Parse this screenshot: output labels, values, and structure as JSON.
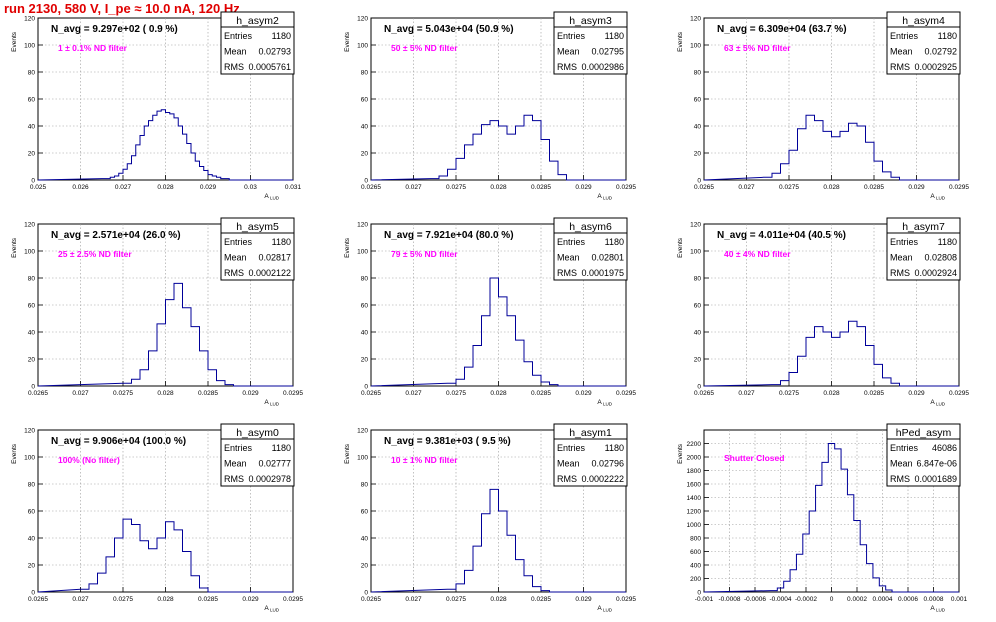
{
  "header": {
    "title": "run 2130,   580 V, I_pe ≈ 10.0 nA, 120 Hz"
  },
  "chart_data": [
    {
      "type": "bar",
      "name": "h_asym2",
      "title": "N_avg = 9.297e+02 ( 0.9 %)",
      "annotation": "1 ±  0.1% ND filter",
      "xlabel": "A_LUD",
      "ylabel": "Events",
      "xlim": [
        0.025,
        0.031
      ],
      "ylim": [
        0,
        120
      ],
      "xticks": [
        0.025,
        0.026,
        0.027,
        0.028,
        0.029,
        0.03,
        0.031
      ],
      "xtick_labels": [
        "0.025",
        "0.026",
        "0.027",
        "0.028",
        "0.029",
        "0.03",
        "0.031"
      ],
      "yticks": [
        0,
        20,
        40,
        60,
        80,
        100,
        120
      ],
      "stats": {
        "Entries": "1180",
        "Mean": "0.02793",
        "RMS": "0.0005761"
      },
      "x": [
        0.02655,
        0.02665,
        0.02675,
        0.02685,
        0.02695,
        0.02705,
        0.02715,
        0.02725,
        0.02735,
        0.02745,
        0.02755,
        0.02765,
        0.02775,
        0.02785,
        0.02795,
        0.02805,
        0.02815,
        0.02825,
        0.02835,
        0.02845,
        0.02855,
        0.02865,
        0.02875,
        0.02885,
        0.02895,
        0.02905,
        0.02915,
        0.02925,
        0.02935,
        0.02945
      ],
      "values": [
        1,
        1,
        2,
        3,
        5,
        8,
        12,
        18,
        26,
        33,
        40,
        44,
        48,
        51,
        52,
        50,
        49,
        46,
        40,
        34,
        27,
        20,
        14,
        10,
        7,
        4,
        3,
        2,
        1,
        1
      ]
    },
    {
      "type": "bar",
      "name": "h_asym3",
      "title": "N_avg = 5.043e+04 (50.9 %)",
      "annotation": "50 ±  5% ND filter",
      "xlabel": "A_LUD",
      "ylabel": "Events",
      "xlim": [
        0.0265,
        0.0295
      ],
      "ylim": [
        0,
        120
      ],
      "xticks": [
        0.0265,
        0.027,
        0.0275,
        0.028,
        0.0285,
        0.029,
        0.0295
      ],
      "xtick_labels": [
        "0.0265",
        "0.027",
        "0.0275",
        "0.028",
        "0.0285",
        "0.029",
        "0.0295"
      ],
      "yticks": [
        0,
        20,
        40,
        60,
        80,
        100,
        120
      ],
      "stats": {
        "Entries": "1180",
        "Mean": "0.02795",
        "RMS": "0.0002986"
      },
      "x": [
        0.02725,
        0.02735,
        0.02745,
        0.02755,
        0.02765,
        0.02775,
        0.02785,
        0.02795,
        0.02805,
        0.02815,
        0.02825,
        0.02835,
        0.02845,
        0.02855,
        0.02865,
        0.02875
      ],
      "values": [
        1,
        3,
        8,
        16,
        26,
        34,
        41,
        44,
        40,
        34,
        40,
        48,
        44,
        30,
        14,
        4
      ]
    },
    {
      "type": "bar",
      "name": "h_asym4",
      "title": "N_avg = 6.309e+04 (63.7 %)",
      "annotation": "63 ±  5% ND filter",
      "xlabel": "A_LUD",
      "ylabel": "Events",
      "xlim": [
        0.0265,
        0.0295
      ],
      "ylim": [
        0,
        120
      ],
      "xticks": [
        0.0265,
        0.027,
        0.0275,
        0.028,
        0.0285,
        0.029,
        0.0295
      ],
      "xtick_labels": [
        "0.0265",
        "0.027",
        "0.0275",
        "0.028",
        "0.0285",
        "0.029",
        "0.0295"
      ],
      "yticks": [
        0,
        20,
        40,
        60,
        80,
        100,
        120
      ],
      "stats": {
        "Entries": "1180",
        "Mean": "0.02792",
        "RMS": "0.0002925"
      },
      "x": [
        0.02725,
        0.02735,
        0.02745,
        0.02755,
        0.02765,
        0.02775,
        0.02785,
        0.02795,
        0.02805,
        0.02815,
        0.02825,
        0.02835,
        0.02845,
        0.02855,
        0.02865,
        0.02875
      ],
      "values": [
        2,
        5,
        12,
        22,
        38,
        48,
        44,
        36,
        32,
        36,
        42,
        40,
        28,
        14,
        6,
        2
      ]
    },
    {
      "type": "bar",
      "name": "h_asym5",
      "title": "N_avg = 2.571e+04 (26.0 %)",
      "annotation": "25 ±  2.5% ND filter",
      "xlabel": "A_LUD",
      "ylabel": "Events",
      "xlim": [
        0.0265,
        0.0295
      ],
      "ylim": [
        0,
        120
      ],
      "xticks": [
        0.0265,
        0.027,
        0.0275,
        0.028,
        0.0285,
        0.029,
        0.0295
      ],
      "xtick_labels": [
        "0.0265",
        "0.027",
        "0.0275",
        "0.028",
        "0.0285",
        "0.029",
        "0.0295"
      ],
      "yticks": [
        0,
        20,
        40,
        60,
        80,
        100,
        120
      ],
      "stats": {
        "Entries": "1180",
        "Mean": "0.02817",
        "RMS": "0.0002122"
      },
      "x": [
        0.02755,
        0.02765,
        0.02775,
        0.02785,
        0.02795,
        0.02805,
        0.02815,
        0.02825,
        0.02835,
        0.02845,
        0.02855,
        0.02865,
        0.02875
      ],
      "values": [
        2,
        5,
        12,
        26,
        46,
        64,
        76,
        58,
        44,
        26,
        12,
        4,
        1
      ]
    },
    {
      "type": "bar",
      "name": "h_asym6",
      "title": "N_avg = 7.921e+04 (80.0 %)",
      "annotation": "79 ±  5% ND filter",
      "xlabel": "A_LUD",
      "ylabel": "Events",
      "xlim": [
        0.0265,
        0.0295
      ],
      "ylim": [
        0,
        120
      ],
      "xticks": [
        0.0265,
        0.027,
        0.0275,
        0.028,
        0.0285,
        0.029,
        0.0295
      ],
      "xtick_labels": [
        "0.0265",
        "0.027",
        "0.0275",
        "0.028",
        "0.0285",
        "0.029",
        "0.0295"
      ],
      "yticks": [
        0,
        20,
        40,
        60,
        80,
        100,
        120
      ],
      "stats": {
        "Entries": "1180",
        "Mean": "0.02801",
        "RMS": "0.0001975"
      },
      "x": [
        0.02745,
        0.02755,
        0.02765,
        0.02775,
        0.02785,
        0.02795,
        0.02805,
        0.02815,
        0.02825,
        0.02835,
        0.02845,
        0.02855,
        0.02865
      ],
      "values": [
        2,
        5,
        14,
        30,
        52,
        80,
        66,
        52,
        34,
        18,
        8,
        3,
        1
      ]
    },
    {
      "type": "bar",
      "name": "h_asym7",
      "title": "N_avg = 4.011e+04 (40.5 %)",
      "annotation": "40 ±  4% ND filter",
      "xlabel": "A_LUD",
      "ylabel": "Events",
      "xlim": [
        0.0265,
        0.0295
      ],
      "ylim": [
        0,
        120
      ],
      "xticks": [
        0.0265,
        0.027,
        0.0275,
        0.028,
        0.0285,
        0.029,
        0.0295
      ],
      "xtick_labels": [
        "0.0265",
        "0.027",
        "0.0275",
        "0.028",
        "0.0285",
        "0.029",
        "0.0295"
      ],
      "yticks": [
        0,
        20,
        40,
        60,
        80,
        100,
        120
      ],
      "stats": {
        "Entries": "1180",
        "Mean": "0.02808",
        "RMS": "0.0002924"
      },
      "x": [
        0.02735,
        0.02745,
        0.02755,
        0.02765,
        0.02775,
        0.02785,
        0.02795,
        0.02805,
        0.02815,
        0.02825,
        0.02835,
        0.02845,
        0.02855,
        0.02865,
        0.02875
      ],
      "values": [
        1,
        4,
        10,
        22,
        36,
        44,
        40,
        36,
        40,
        48,
        44,
        30,
        16,
        6,
        2
      ]
    },
    {
      "type": "bar",
      "name": "h_asym0",
      "title": "N_avg = 9.906e+04 (100.0 %)",
      "annotation": "100% (No filter)",
      "xlabel": "A_LUD",
      "ylabel": "Events",
      "xlim": [
        0.0265,
        0.0295
      ],
      "ylim": [
        0,
        120
      ],
      "xticks": [
        0.0265,
        0.027,
        0.0275,
        0.028,
        0.0285,
        0.029,
        0.0295
      ],
      "xtick_labels": [
        "0.0265",
        "0.027",
        "0.0275",
        "0.028",
        "0.0285",
        "0.029",
        "0.0295"
      ],
      "yticks": [
        0,
        20,
        40,
        60,
        80,
        100,
        120
      ],
      "stats": {
        "Entries": "1180",
        "Mean": "0.02777",
        "RMS": "0.0002978"
      },
      "x": [
        0.02705,
        0.02715,
        0.02725,
        0.02735,
        0.02745,
        0.02755,
        0.02765,
        0.02775,
        0.02785,
        0.02795,
        0.02805,
        0.02815,
        0.02825,
        0.02835,
        0.02845
      ],
      "values": [
        2,
        6,
        14,
        26,
        40,
        54,
        50,
        38,
        32,
        40,
        52,
        46,
        30,
        12,
        3
      ]
    },
    {
      "type": "bar",
      "name": "h_asym1",
      "title": "N_avg = 9.381e+03 ( 9.5 %)",
      "annotation": "10 ±  1% ND filter",
      "xlabel": "A_LUD",
      "ylabel": "Events",
      "xlim": [
        0.0265,
        0.0295
      ],
      "ylim": [
        0,
        120
      ],
      "xticks": [
        0.0265,
        0.027,
        0.0275,
        0.028,
        0.0285,
        0.029,
        0.0295
      ],
      "xtick_labels": [
        "0.0265",
        "0.027",
        "0.0275",
        "0.028",
        "0.0285",
        "0.029",
        "0.0295"
      ],
      "yticks": [
        0,
        20,
        40,
        60,
        80,
        100,
        120
      ],
      "stats": {
        "Entries": "1180",
        "Mean": "0.02796",
        "RMS": "0.0002222"
      },
      "x": [
        0.02745,
        0.02755,
        0.02765,
        0.02775,
        0.02785,
        0.02795,
        0.02805,
        0.02815,
        0.02825,
        0.02835,
        0.02845,
        0.02855
      ],
      "values": [
        2,
        6,
        16,
        34,
        58,
        76,
        60,
        42,
        24,
        12,
        4,
        1
      ]
    },
    {
      "type": "bar",
      "name": "hPed_asym",
      "title": "",
      "annotation": "Shutter Closed",
      "xlabel": "A_LUD",
      "ylabel": "Events",
      "xlim": [
        -0.001,
        0.001
      ],
      "ylim": [
        0,
        2400
      ],
      "xticks": [
        -0.001,
        -0.0008,
        -0.0006,
        -0.0004,
        -0.0002,
        0,
        0.0002,
        0.0004,
        0.0006,
        0.0008,
        0.001
      ],
      "xtick_labels": [
        "-0.001",
        "-0.0008",
        "-0.0006",
        "-0.0004",
        "-0.0002",
        "0",
        "0.0002",
        "0.0004",
        "0.0006",
        "0.0008",
        "0.001"
      ],
      "yticks": [
        0,
        200,
        400,
        600,
        800,
        1000,
        1200,
        1400,
        1600,
        1800,
        2000,
        2200
      ],
      "stats": {
        "Entries": "46086",
        "Mean": "6.847e-06",
        "RMS": "0.0001689"
      },
      "x": [
        -0.00045,
        -0.0004,
        -0.00035,
        -0.0003,
        -0.00025,
        -0.0002,
        -0.00015,
        -0.0001,
        -5e-05,
        0,
        5e-05,
        0.0001,
        0.00015,
        0.0002,
        0.00025,
        0.0003,
        0.00035,
        0.0004,
        0.00045
      ],
      "values": [
        20,
        60,
        160,
        330,
        560,
        860,
        1200,
        1580,
        1920,
        2200,
        2120,
        1820,
        1440,
        1060,
        700,
        420,
        210,
        90,
        30
      ]
    }
  ]
}
